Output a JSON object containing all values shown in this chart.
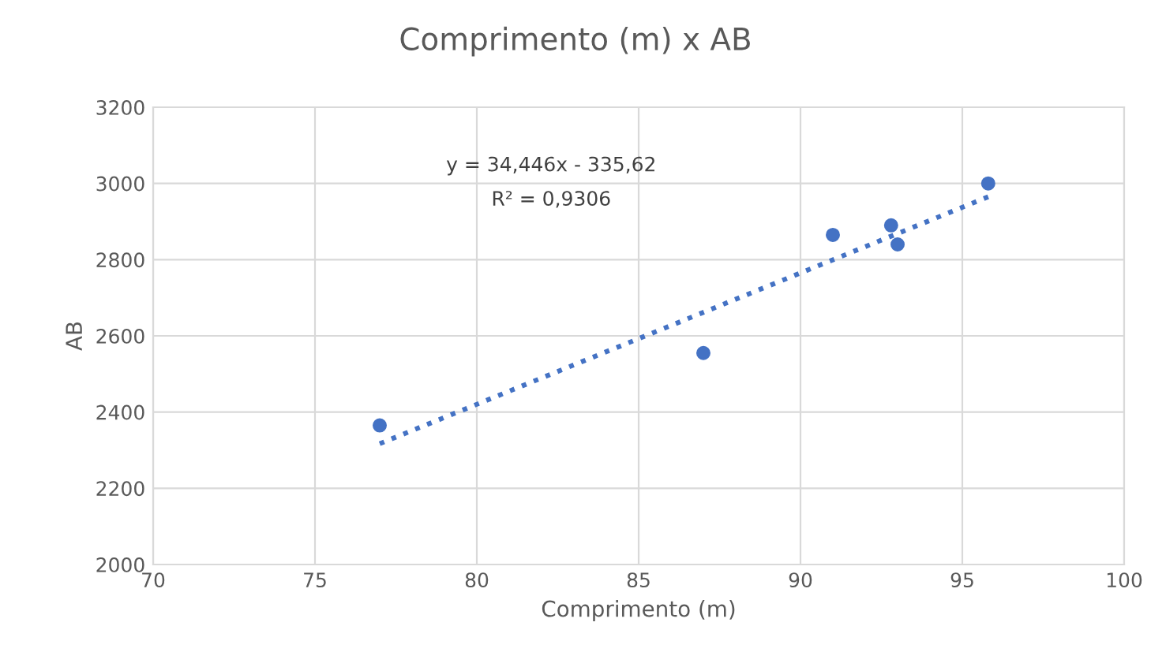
{
  "chart_data": {
    "type": "scatter",
    "title": "Comprimento (m) x AB",
    "xlabel": "Comprimento (m)",
    "ylabel": "AB",
    "series": [
      {
        "color": "#4472c4",
        "x": [
          77,
          87,
          91,
          92.8,
          93,
          95.8
        ],
        "values": [
          2365,
          2555,
          2865,
          2890,
          2840,
          3000
        ],
        "marker": "circle"
      },
      {
        "type": "line",
        "color": "#4472c4",
        "x": [
          77,
          95.8
        ],
        "values": [
          2317,
          2965
        ],
        "line_style": "dotted",
        "marker": "none"
      }
    ],
    "annotations": [
      {
        "text": "y = 34,446x - 335,62"
      },
      {
        "text": "R² = 0,9306"
      }
    ],
    "xlim": [
      70,
      100
    ],
    "xticks": [
      70,
      75,
      80,
      85,
      90,
      95,
      100
    ],
    "ylim": [
      2000,
      3200
    ],
    "yticks": [
      2000,
      2200,
      2400,
      2600,
      2800,
      3000,
      3200
    ],
    "grid": true,
    "legend": false
  }
}
